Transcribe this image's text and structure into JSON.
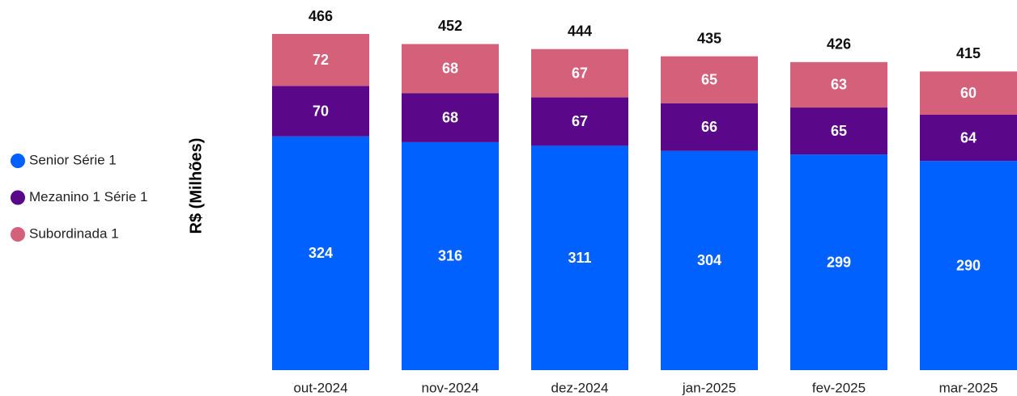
{
  "chart_data": {
    "type": "stacked_bar",
    "y_label": "R$ (Milhões)",
    "categories": [
      "out-2024",
      "nov-2024",
      "dez-2024",
      "jan-2025",
      "fev-2025",
      "mar-2025"
    ],
    "series": [
      {
        "name": "Senior Série 1",
        "color": "#0061fe",
        "values": [
          324,
          316,
          311,
          304,
          299,
          290
        ]
      },
      {
        "name": "Mezanino 1 Série 1",
        "color": "#5a0889",
        "values": [
          70,
          68,
          67,
          66,
          65,
          64
        ]
      },
      {
        "name": "Subordinada 1",
        "color": "#d4607a",
        "values": [
          72,
          68,
          67,
          65,
          63,
          60
        ]
      }
    ],
    "totals": [
      466,
      452,
      444,
      435,
      426,
      415
    ],
    "ylim": [
      0,
      466
    ]
  }
}
